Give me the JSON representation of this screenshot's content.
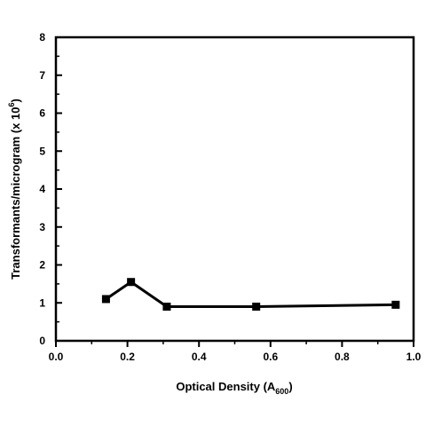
{
  "chart_data": {
    "type": "line",
    "x": [
      0.14,
      0.21,
      0.31,
      0.56,
      0.95
    ],
    "y": [
      1.1,
      1.55,
      0.9,
      0.9,
      0.95
    ],
    "xlim": [
      0.0,
      1.0
    ],
    "ylim": [
      0,
      8
    ],
    "x_ticks": [
      0.0,
      0.2,
      0.4,
      0.6,
      0.8,
      1.0
    ],
    "y_ticks": [
      0,
      1,
      2,
      3,
      4,
      5,
      6,
      7,
      8
    ],
    "x_tick_labels": [
      "0.0",
      "0.2",
      "0.4",
      "0.6",
      "0.8",
      "1.0"
    ],
    "y_tick_labels": [
      "0",
      "1",
      "2",
      "3",
      "4",
      "5",
      "6",
      "7",
      "8"
    ],
    "xlabel": {
      "main": "Optical Density (A",
      "sub": "600",
      "close": ")"
    },
    "ylabel": {
      "main": "Transformants/microgram (x 10",
      "sup": "6",
      "close": ")"
    },
    "marker": "square",
    "color": "#000000",
    "grid": false,
    "legend": "none"
  }
}
